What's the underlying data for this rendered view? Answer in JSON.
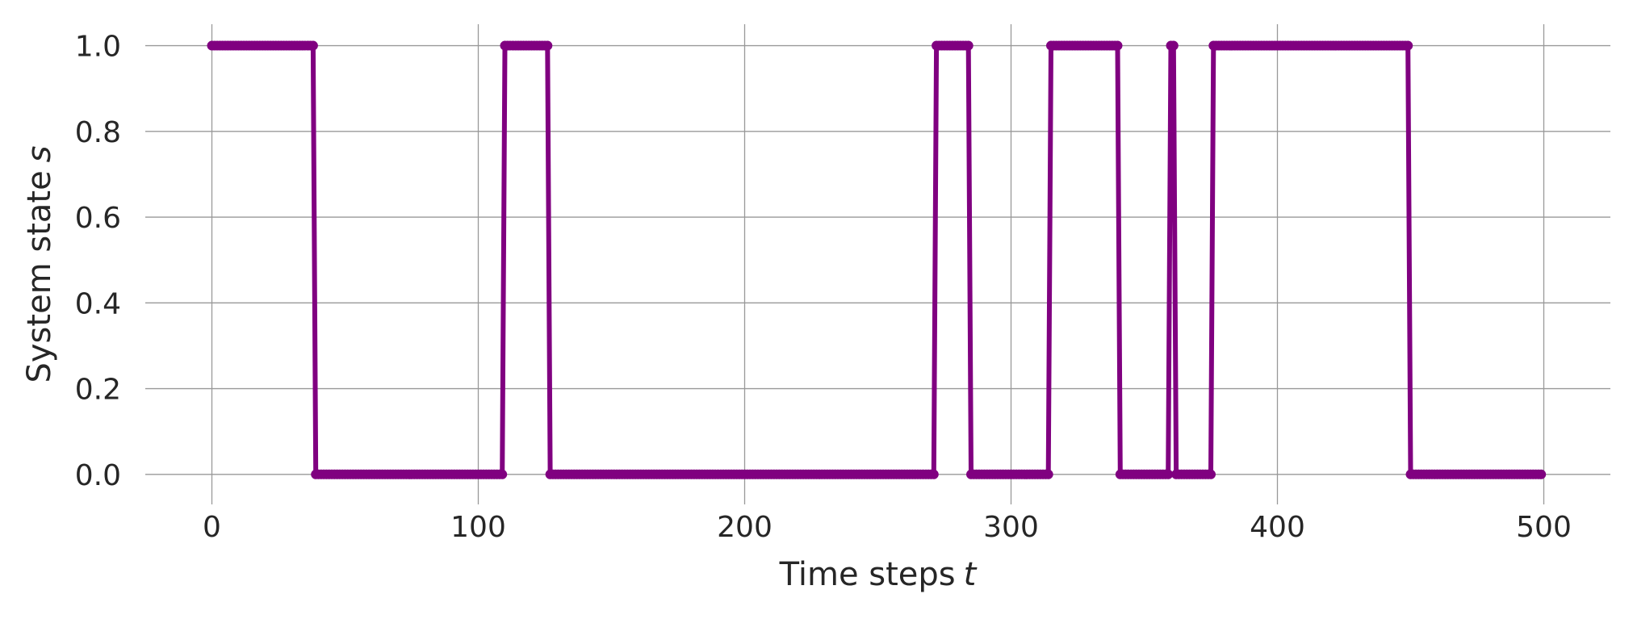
{
  "chart_data": {
    "type": "line",
    "title": "",
    "xlabel": "Time steps",
    "xlabel_symbol": "t",
    "ylabel": "System state",
    "ylabel_symbol": "s",
    "xlim": [
      -25,
      525
    ],
    "ylim": [
      -0.07,
      1.05
    ],
    "xticks": [
      0,
      100,
      200,
      300,
      400,
      500
    ],
    "xtick_labels": [
      "0",
      "100",
      "200",
      "300",
      "400",
      "500"
    ],
    "yticks": [
      0.0,
      0.2,
      0.4,
      0.6,
      0.8,
      1.0
    ],
    "ytick_labels": [
      "0.0",
      "0.2",
      "0.4",
      "0.6",
      "0.8",
      "1.0"
    ],
    "grid": true,
    "legend": "none",
    "series": [
      {
        "color": "#800080",
        "marker": "circle",
        "transitions": [
          {
            "t": 0,
            "s": 1
          },
          {
            "t": 39,
            "s": 0
          },
          {
            "t": 110,
            "s": 1
          },
          {
            "t": 127,
            "s": 0
          },
          {
            "t": 272,
            "s": 1
          },
          {
            "t": 285,
            "s": 0
          },
          {
            "t": 315,
            "s": 1
          },
          {
            "t": 341,
            "s": 0
          },
          {
            "t": 360,
            "s": 1
          },
          {
            "t": 362,
            "s": 0
          },
          {
            "t": 376,
            "s": 1
          },
          {
            "t": 450,
            "s": 0
          }
        ],
        "t_end": 499
      }
    ]
  }
}
